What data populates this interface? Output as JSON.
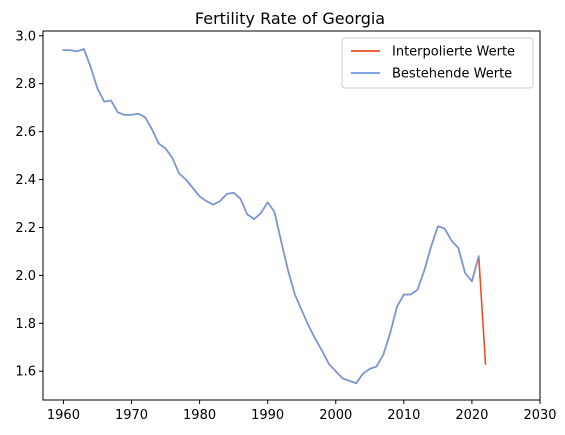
{
  "chart_data": {
    "type": "line",
    "title": "Fertility Rate of Georgia",
    "xlabel": "",
    "ylabel": "",
    "xlim": [
      1957,
      2030
    ],
    "ylim": [
      1.48,
      3.02
    ],
    "xticks": [
      1960,
      1970,
      1980,
      1990,
      2000,
      2010,
      2020,
      2030
    ],
    "yticks": [
      1.6,
      1.8,
      2.0,
      2.2,
      2.4,
      2.6,
      2.8,
      3.0
    ],
    "grid": false,
    "legend_position": "top-right",
    "series": [
      {
        "name": "Interpolierte Werte",
        "color": "#f04e23",
        "x": [
          1960,
          1961,
          1962,
          1963,
          1964,
          1965,
          1966,
          1967,
          1968,
          1969,
          1970,
          1971,
          1972,
          1973,
          1974,
          1975,
          1976,
          1977,
          1978,
          1979,
          1980,
          1981,
          1982,
          1983,
          1984,
          1985,
          1986,
          1987,
          1988,
          1989,
          1990,
          1991,
          1992,
          1993,
          1994,
          1995,
          1996,
          1997,
          1998,
          1999,
          2000,
          2001,
          2002,
          2003,
          2004,
          2005,
          2006,
          2007,
          2008,
          2009,
          2010,
          2011,
          2012,
          2013,
          2014,
          2015,
          2016,
          2017,
          2018,
          2019,
          2020,
          2021,
          2022
        ],
        "y": [
          2.94,
          2.94,
          2.935,
          2.945,
          2.87,
          2.78,
          2.725,
          2.73,
          2.68,
          2.67,
          2.67,
          2.675,
          2.66,
          2.61,
          2.55,
          2.53,
          2.49,
          2.425,
          2.4,
          2.365,
          2.33,
          2.31,
          2.295,
          2.31,
          2.34,
          2.345,
          2.32,
          2.255,
          2.235,
          2.26,
          2.305,
          2.265,
          2.14,
          2.02,
          1.92,
          1.855,
          1.79,
          1.735,
          1.685,
          1.63,
          1.6,
          1.57,
          1.56,
          1.55,
          1.59,
          1.61,
          1.62,
          1.67,
          1.76,
          1.87,
          1.92,
          1.92,
          1.94,
          2.02,
          2.12,
          2.205,
          2.195,
          2.145,
          2.115,
          2.01,
          1.975,
          2.08,
          1.63
        ]
      },
      {
        "name": "Bestehende Werte",
        "color": "#6f9ae0",
        "x": [
          1960,
          1961,
          1962,
          1963,
          1964,
          1965,
          1966,
          1967,
          1968,
          1969,
          1970,
          1971,
          1972,
          1973,
          1974,
          1975,
          1976,
          1977,
          1978,
          1979,
          1980,
          1981,
          1982,
          1983,
          1984,
          1985,
          1986,
          1987,
          1988,
          1989,
          1990,
          1991,
          1992,
          1993,
          1994,
          1995,
          1996,
          1997,
          1998,
          1999,
          2000,
          2001,
          2002,
          2003,
          2004,
          2005,
          2006,
          2007,
          2008,
          2009,
          2010,
          2011,
          2012,
          2013,
          2014,
          2015,
          2016,
          2017,
          2018,
          2019,
          2020,
          2021
        ],
        "y": [
          2.94,
          2.94,
          2.935,
          2.945,
          2.87,
          2.78,
          2.725,
          2.73,
          2.68,
          2.67,
          2.67,
          2.675,
          2.66,
          2.61,
          2.55,
          2.53,
          2.49,
          2.425,
          2.4,
          2.365,
          2.33,
          2.31,
          2.295,
          2.31,
          2.34,
          2.345,
          2.32,
          2.255,
          2.235,
          2.26,
          2.305,
          2.265,
          2.14,
          2.02,
          1.92,
          1.855,
          1.79,
          1.735,
          1.685,
          1.63,
          1.6,
          1.57,
          1.56,
          1.55,
          1.59,
          1.61,
          1.62,
          1.67,
          1.76,
          1.87,
          1.92,
          1.92,
          1.94,
          2.02,
          2.12,
          2.205,
          2.195,
          2.145,
          2.115,
          2.01,
          1.975,
          2.08
        ]
      }
    ]
  }
}
